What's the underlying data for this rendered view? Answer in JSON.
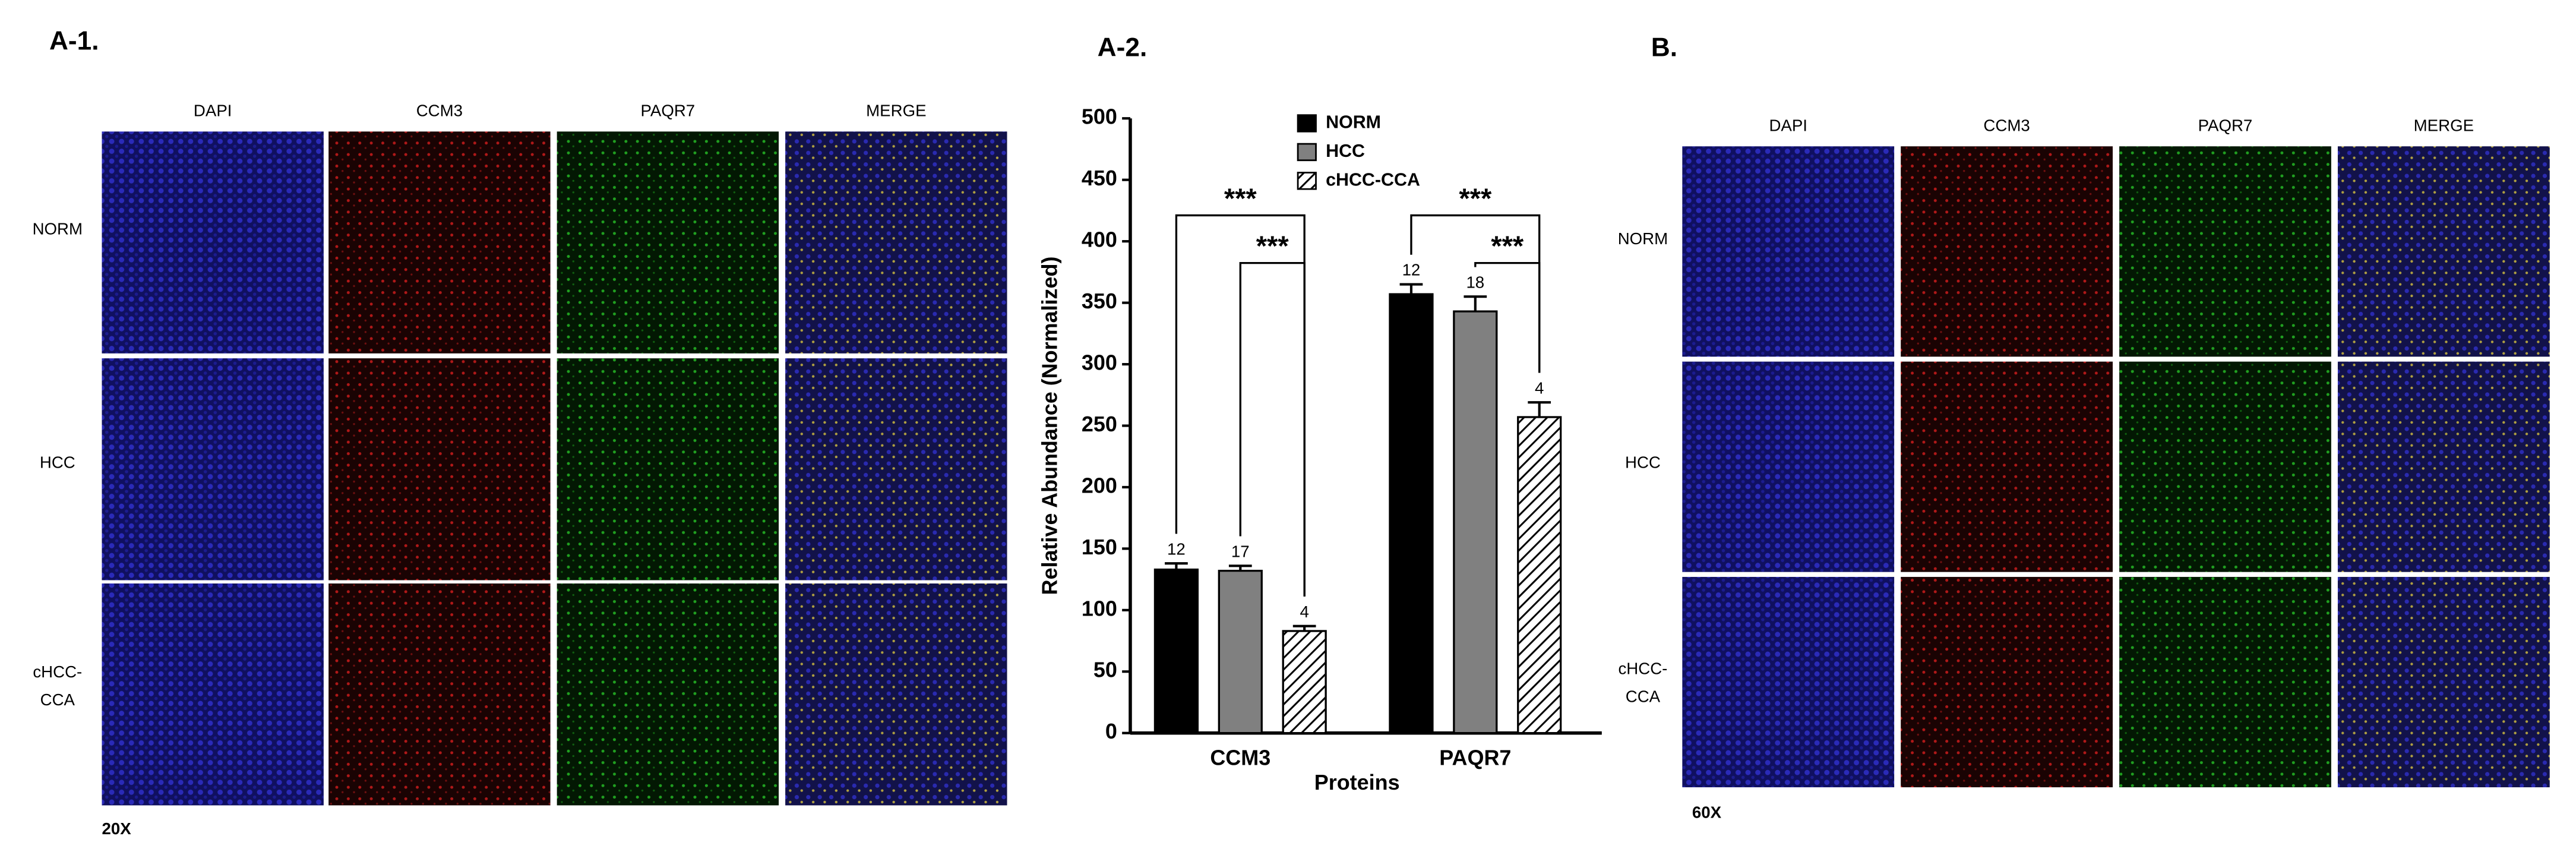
{
  "panels": {
    "a1": {
      "label": "A-1.",
      "columns": [
        "DAPI",
        "CCM3",
        "PAQR7",
        "MERGE"
      ],
      "rows": [
        [
          "NORM"
        ],
        [
          "HCC"
        ],
        [
          "cHCC-",
          "CCA"
        ]
      ],
      "magnification": "20X"
    },
    "a2": {
      "label": "A-2."
    },
    "b": {
      "label": "B.",
      "columns": [
        "DAPI",
        "CCM3",
        "PAQR7",
        "MERGE"
      ],
      "rows": [
        [
          "NORM"
        ],
        [
          "HCC"
        ],
        [
          "cHCC-",
          "CCA"
        ]
      ],
      "magnification": "60X"
    }
  },
  "chart_data": {
    "type": "bar",
    "y_label": "Relative Abundance (Normalized)",
    "x_label": "Proteins",
    "categories": [
      "CCM3",
      "PAQR7"
    ],
    "series": [
      {
        "name": "NORM",
        "color": "#000000",
        "hatch": false,
        "values": [
          133,
          357
        ],
        "errors": [
          5,
          8
        ],
        "counts": [
          12,
          12
        ]
      },
      {
        "name": "HCC",
        "color": "#808080",
        "hatch": false,
        "values": [
          132,
          343
        ],
        "errors": [
          4,
          12
        ],
        "counts": [
          17,
          18
        ]
      },
      {
        "name": "cHCC-CCA",
        "color": "#ffffff",
        "hatch": true,
        "values": [
          83,
          257
        ],
        "errors": [
          4,
          12
        ],
        "counts": [
          4,
          4
        ]
      }
    ],
    "significance": [
      "***",
      "***",
      "***",
      "***"
    ],
    "ylim": [
      0,
      500
    ],
    "yticks": [
      0,
      50,
      100,
      150,
      200,
      250,
      300,
      350,
      400,
      450,
      500
    ]
  }
}
